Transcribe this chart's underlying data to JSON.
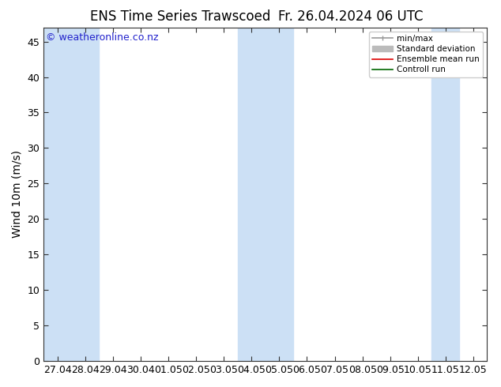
{
  "title_left": "ENS Time Series Trawscoed",
  "title_right": "Fr. 26.04.2024 06 UTC",
  "ylabel": "Wind 10m (m/s)",
  "watermark": "© weatheronline.co.nz",
  "ylim": [
    0,
    47
  ],
  "yticks": [
    0,
    5,
    10,
    15,
    20,
    25,
    30,
    35,
    40,
    45
  ],
  "xtick_labels": [
    "27.04",
    "28.04",
    "29.04",
    "30.04",
    "01.05",
    "02.05",
    "03.05",
    "04.05",
    "05.05",
    "06.05",
    "07.05",
    "08.05",
    "09.05",
    "10.05",
    "11.05",
    "12.05"
  ],
  "shaded_band_ranges": [
    [
      0,
      1
    ],
    [
      1,
      2
    ],
    [
      7,
      8
    ],
    [
      8,
      9
    ],
    [
      14,
      15
    ]
  ],
  "band_color": "#cce0f5",
  "bg_color": "#ffffff",
  "legend_items": [
    {
      "label": "min/max",
      "color": "#999999",
      "lw": 1.2
    },
    {
      "label": "Standard deviation",
      "color": "#bbbbbb",
      "lw": 6
    },
    {
      "label": "Ensemble mean run",
      "color": "#dd0000",
      "lw": 1.2
    },
    {
      "label": "Controll run",
      "color": "#006600",
      "lw": 1.2
    }
  ],
  "title_fontsize": 12,
  "label_fontsize": 10,
  "tick_fontsize": 9,
  "watermark_color": "#2222cc",
  "watermark_fontsize": 9
}
